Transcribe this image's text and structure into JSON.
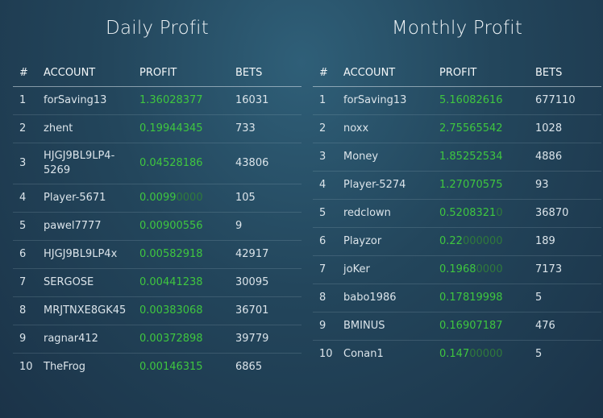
{
  "daily": {
    "title": "Daily Profit",
    "headers": [
      "#",
      "ACCOUNT",
      "PROFIT",
      "BETS"
    ],
    "rows": [
      {
        "rank": "1",
        "account": "forSaving13",
        "profit_main": "1.36028377",
        "profit_dim": "",
        "bets": "16031"
      },
      {
        "rank": "2",
        "account": "zhent",
        "profit_main": "0.19944345",
        "profit_dim": "",
        "bets": "733"
      },
      {
        "rank": "3",
        "account": "HJGJ9BL9LP4-5269",
        "profit_main": "0.04528186",
        "profit_dim": "",
        "bets": "43806"
      },
      {
        "rank": "4",
        "account": "Player-5671",
        "profit_main": "0.0099",
        "profit_dim": "0000",
        "bets": "105"
      },
      {
        "rank": "5",
        "account": "pawel7777",
        "profit_main": "0.00900556",
        "profit_dim": "",
        "bets": "9"
      },
      {
        "rank": "6",
        "account": "HJGJ9BL9LP4x",
        "profit_main": "0.00582918",
        "profit_dim": "",
        "bets": "42917"
      },
      {
        "rank": "7",
        "account": "SERGOSE",
        "profit_main": "0.00441238",
        "profit_dim": "",
        "bets": "30095"
      },
      {
        "rank": "8",
        "account": "MRJTNXE8GK45",
        "profit_main": "0.00383068",
        "profit_dim": "",
        "bets": "36701"
      },
      {
        "rank": "9",
        "account": "ragnar412",
        "profit_main": "0.00372898",
        "profit_dim": "",
        "bets": "39779"
      },
      {
        "rank": "10",
        "account": "TheFrog",
        "profit_main": "0.00146315",
        "profit_dim": "",
        "bets": "6865"
      }
    ]
  },
  "monthly": {
    "title": "Monthly Profit",
    "headers": [
      "#",
      "ACCOUNT",
      "PROFIT",
      "BETS"
    ],
    "rows": [
      {
        "rank": "1",
        "account": "forSaving13",
        "profit_main": "5.16082616",
        "profit_dim": "",
        "bets": "677110"
      },
      {
        "rank": "2",
        "account": "noxx",
        "profit_main": "2.75565542",
        "profit_dim": "",
        "bets": "1028"
      },
      {
        "rank": "3",
        "account": "Money",
        "profit_main": "1.85252534",
        "profit_dim": "",
        "bets": "4886"
      },
      {
        "rank": "4",
        "account": "Player-5274",
        "profit_main": "1.27070575",
        "profit_dim": "",
        "bets": "93"
      },
      {
        "rank": "5",
        "account": "redclown",
        "profit_main": "0.5208321",
        "profit_dim": "0",
        "bets": "36870"
      },
      {
        "rank": "6",
        "account": "Playzor",
        "profit_main": "0.22",
        "profit_dim": "000000",
        "bets": "189"
      },
      {
        "rank": "7",
        "account": "joKer",
        "profit_main": "0.1968",
        "profit_dim": "0000",
        "bets": "7173"
      },
      {
        "rank": "8",
        "account": "babo1986",
        "profit_main": "0.17819998",
        "profit_dim": "",
        "bets": "5"
      },
      {
        "rank": "9",
        "account": "BMINUS",
        "profit_main": "0.16907187",
        "profit_dim": "",
        "bets": "476"
      },
      {
        "rank": "10",
        "account": "Conan1",
        "profit_main": "0.147",
        "profit_dim": "00000",
        "bets": "5"
      }
    ]
  },
  "colors": {
    "profit": "#3fc63f",
    "profit_trailing_zeros": "#2f7a3b"
  }
}
